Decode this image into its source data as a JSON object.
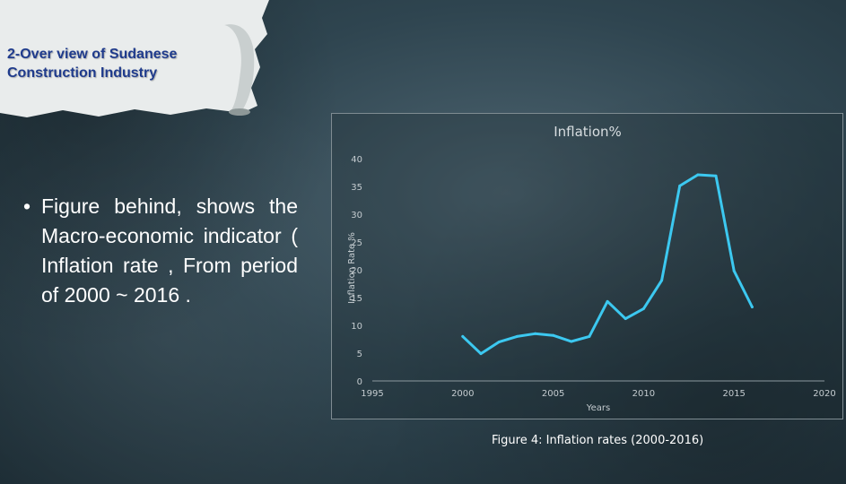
{
  "slide": {
    "title_lines": [
      "2-Over view of Sudanese",
      "Construction Industry"
    ],
    "bullet_marker": "•",
    "bullet_text": "Figure behind, shows the Macro-economic indicator ( Inflation rate , From period of 2000 ~ 2016 .",
    "caption": "Figure 4: Inflation rates (2000-2016)"
  },
  "colors": {
    "line": "#3cc8f0",
    "axis_text": "#c5ccd0",
    "title_text": "#1f3b8c",
    "grid": "#5f7078"
  },
  "chart_data": {
    "type": "line",
    "title": "Inflation%",
    "xlabel": "Years",
    "ylabel": "Inflation Rate %",
    "xlim": [
      1995,
      2020
    ],
    "ylim": [
      0,
      40
    ],
    "x_ticks": [
      1995,
      2000,
      2005,
      2010,
      2015,
      2020
    ],
    "y_ticks": [
      0,
      5,
      10,
      15,
      20,
      25,
      30,
      35,
      40
    ],
    "grid": false,
    "legend": "none",
    "x": [
      2000,
      2001,
      2002,
      2003,
      2004,
      2005,
      2006,
      2007,
      2008,
      2009,
      2010,
      2011,
      2012,
      2013,
      2014,
      2015,
      2016
    ],
    "values": [
      8.0,
      4.9,
      7.0,
      8.0,
      8.5,
      8.2,
      7.1,
      8.0,
      14.3,
      11.2,
      13.0,
      18.1,
      35.1,
      37.1,
      36.9,
      19.8,
      13.3
    ]
  }
}
